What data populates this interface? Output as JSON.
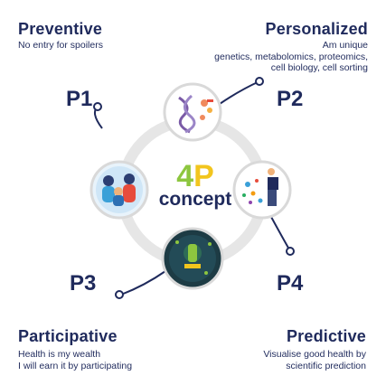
{
  "center": {
    "four": "4",
    "p": "P",
    "word": "concept"
  },
  "sections": {
    "preventive": {
      "title": "Preventive",
      "lines": [
        "No entry for spoilers"
      ],
      "code": "P1"
    },
    "personalized": {
      "title": "Personalized",
      "lines": [
        "Am  unique",
        "genetics, metabolomics, proteomics,",
        "cell biology, cell sorting"
      ],
      "code": "P2"
    },
    "participative": {
      "title": "Participative",
      "lines": [
        "Health is my wealth",
        "I will earn it by participating"
      ],
      "code": "P3"
    },
    "predictive": {
      "title": "Predictive",
      "lines": [
        "Visualise good health by",
        "scientific prediction"
      ],
      "code": "P4"
    }
  },
  "icons": {
    "p1": "family-icon",
    "p2": "dna-icon",
    "p3": "microscope-icon",
    "p4": "scientist-data-icon"
  },
  "colors": {
    "navy": "#1f2a5c",
    "four_green": "#8dc63f",
    "p_yellow": "#f2c51e",
    "ring": "#e3e3e3"
  }
}
